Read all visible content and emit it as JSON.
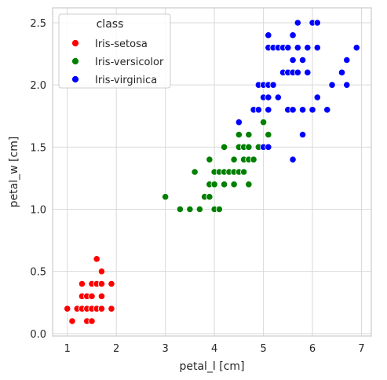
{
  "chart_data": {
    "type": "scatter",
    "xlabel": "petal_l [cm]",
    "ylabel": "petal_w [cm]",
    "xlim": [
      0.7,
      7.2
    ],
    "ylim": [
      -0.02,
      2.62
    ],
    "xticks": [
      1,
      2,
      3,
      4,
      5,
      6,
      7
    ],
    "yticks": [
      0.0,
      0.5,
      1.0,
      1.5,
      2.0,
      2.5
    ],
    "xtick_labels": [
      "1",
      "2",
      "3",
      "4",
      "5",
      "6",
      "7"
    ],
    "ytick_labels": [
      "0.0",
      "0.5",
      "1.0",
      "1.5",
      "2.0",
      "2.5"
    ],
    "grid": true,
    "legend": {
      "title": "class",
      "placement": "top-left"
    },
    "series": [
      {
        "name": "Iris-setosa",
        "color": "#ff0000",
        "points": [
          [
            1.0,
            0.2
          ],
          [
            1.1,
            0.1
          ],
          [
            1.2,
            0.2
          ],
          [
            1.3,
            0.2
          ],
          [
            1.3,
            0.3
          ],
          [
            1.3,
            0.4
          ],
          [
            1.4,
            0.1
          ],
          [
            1.4,
            0.2
          ],
          [
            1.4,
            0.3
          ],
          [
            1.5,
            0.1
          ],
          [
            1.5,
            0.2
          ],
          [
            1.5,
            0.3
          ],
          [
            1.5,
            0.4
          ],
          [
            1.6,
            0.2
          ],
          [
            1.6,
            0.4
          ],
          [
            1.6,
            0.6
          ],
          [
            1.7,
            0.2
          ],
          [
            1.7,
            0.3
          ],
          [
            1.7,
            0.4
          ],
          [
            1.7,
            0.5
          ],
          [
            1.9,
            0.2
          ],
          [
            1.9,
            0.4
          ]
        ]
      },
      {
        "name": "Iris-versicolor",
        "color": "#008000",
        "points": [
          [
            3.0,
            1.1
          ],
          [
            3.3,
            1.0
          ],
          [
            3.5,
            1.0
          ],
          [
            3.6,
            1.3
          ],
          [
            3.7,
            1.0
          ],
          [
            3.8,
            1.1
          ],
          [
            3.9,
            1.1
          ],
          [
            3.9,
            1.2
          ],
          [
            3.9,
            1.4
          ],
          [
            4.0,
            1.0
          ],
          [
            4.0,
            1.2
          ],
          [
            4.0,
            1.3
          ],
          [
            4.1,
            1.0
          ],
          [
            4.1,
            1.3
          ],
          [
            4.2,
            1.2
          ],
          [
            4.2,
            1.3
          ],
          [
            4.2,
            1.5
          ],
          [
            4.3,
            1.3
          ],
          [
            4.4,
            1.2
          ],
          [
            4.4,
            1.3
          ],
          [
            4.4,
            1.4
          ],
          [
            4.5,
            1.3
          ],
          [
            4.5,
            1.5
          ],
          [
            4.5,
            1.6
          ],
          [
            4.6,
            1.3
          ],
          [
            4.6,
            1.4
          ],
          [
            4.6,
            1.5
          ],
          [
            4.7,
            1.2
          ],
          [
            4.7,
            1.4
          ],
          [
            4.7,
            1.5
          ],
          [
            4.7,
            1.6
          ],
          [
            4.8,
            1.4
          ],
          [
            4.8,
            1.8
          ],
          [
            4.9,
            1.5
          ],
          [
            5.0,
            1.7
          ],
          [
            5.1,
            1.6
          ]
        ]
      },
      {
        "name": "Iris-virginica",
        "color": "#0000ff",
        "points": [
          [
            4.5,
            1.7
          ],
          [
            4.8,
            1.8
          ],
          [
            4.9,
            1.8
          ],
          [
            4.9,
            2.0
          ],
          [
            5.0,
            1.5
          ],
          [
            5.0,
            2.0
          ],
          [
            5.0,
            1.9
          ],
          [
            5.1,
            1.5
          ],
          [
            5.1,
            1.8
          ],
          [
            5.1,
            1.9
          ],
          [
            5.1,
            2.0
          ],
          [
            5.1,
            2.3
          ],
          [
            5.1,
            2.4
          ],
          [
            5.2,
            2.0
          ],
          [
            5.2,
            2.3
          ],
          [
            5.3,
            1.9
          ],
          [
            5.3,
            2.3
          ],
          [
            5.4,
            2.1
          ],
          [
            5.4,
            2.3
          ],
          [
            5.5,
            1.8
          ],
          [
            5.5,
            2.1
          ],
          [
            5.5,
            2.3
          ],
          [
            5.6,
            1.4
          ],
          [
            5.6,
            1.8
          ],
          [
            5.6,
            2.1
          ],
          [
            5.6,
            2.2
          ],
          [
            5.6,
            2.4
          ],
          [
            5.7,
            2.1
          ],
          [
            5.7,
            2.3
          ],
          [
            5.7,
            2.5
          ],
          [
            5.8,
            1.6
          ],
          [
            5.8,
            1.8
          ],
          [
            5.8,
            2.2
          ],
          [
            5.9,
            2.1
          ],
          [
            5.9,
            2.3
          ],
          [
            6.0,
            1.8
          ],
          [
            6.0,
            2.5
          ],
          [
            6.1,
            1.9
          ],
          [
            6.1,
            2.3
          ],
          [
            6.1,
            2.5
          ],
          [
            6.3,
            1.8
          ],
          [
            6.4,
            2.0
          ],
          [
            6.6,
            2.1
          ],
          [
            6.7,
            2.0
          ],
          [
            6.7,
            2.2
          ],
          [
            6.9,
            2.3
          ]
        ]
      }
    ]
  }
}
